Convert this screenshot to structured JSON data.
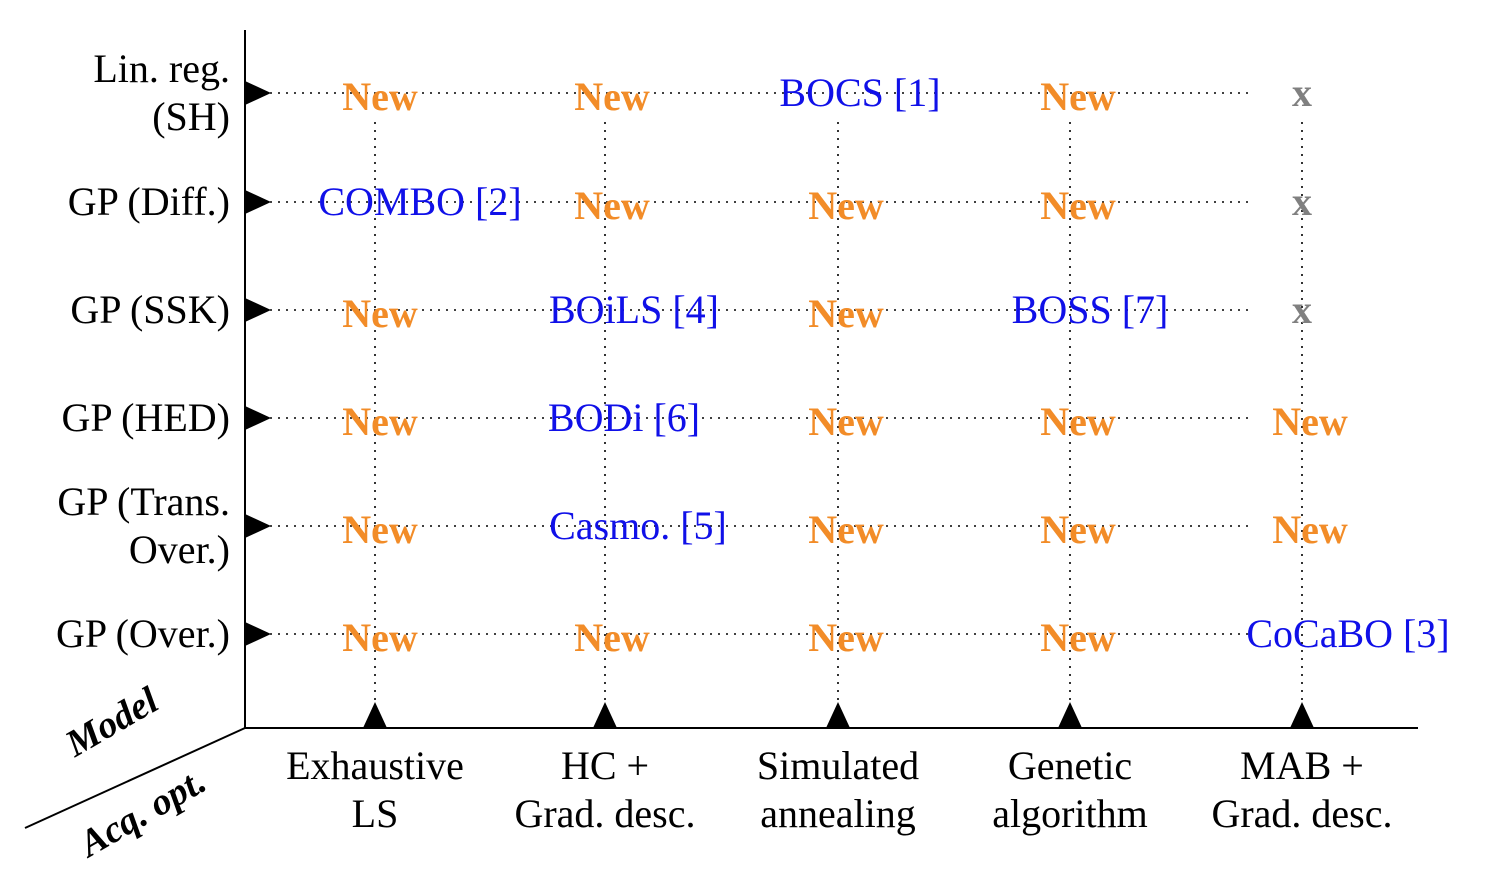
{
  "axes": {
    "row_axis_label": "Model",
    "col_axis_label": "Acq. opt."
  },
  "rows": [
    {
      "label_lines": [
        "Lin.  reg.",
        "(SH)"
      ]
    },
    {
      "label_lines": [
        "GP (Diff.)"
      ]
    },
    {
      "label_lines": [
        "GP (SSK)"
      ]
    },
    {
      "label_lines": [
        "GP (HED)"
      ]
    },
    {
      "label_lines": [
        "GP (Trans.",
        "Over.)"
      ]
    },
    {
      "label_lines": [
        "GP (Over.)"
      ]
    }
  ],
  "columns": [
    {
      "label_lines": [
        "Exhaustive",
        "LS"
      ]
    },
    {
      "label_lines": [
        "HC +",
        "Grad.  desc."
      ]
    },
    {
      "label_lines": [
        "Simulated",
        "annealing"
      ]
    },
    {
      "label_lines": [
        "Genetic",
        "algorithm"
      ]
    },
    {
      "label_lines": [
        "MAB +",
        "Grad.  desc."
      ]
    }
  ],
  "cells": [
    [
      {
        "text": "New",
        "kind": "new"
      },
      {
        "text": "New",
        "kind": "new"
      },
      {
        "text": "BOCS [1]",
        "kind": "ref"
      },
      {
        "text": "New",
        "kind": "new"
      },
      {
        "text": "x",
        "kind": "none"
      }
    ],
    [
      {
        "text": "COMBO [2]",
        "kind": "ref"
      },
      {
        "text": "New",
        "kind": "new"
      },
      {
        "text": "New",
        "kind": "new"
      },
      {
        "text": "New",
        "kind": "new"
      },
      {
        "text": "x",
        "kind": "none"
      }
    ],
    [
      {
        "text": "New",
        "kind": "new"
      },
      {
        "text": "BOiLS [4]",
        "kind": "ref"
      },
      {
        "text": "New",
        "kind": "new"
      },
      {
        "text": "BOSS [7]",
        "kind": "ref"
      },
      {
        "text": "x",
        "kind": "none"
      }
    ],
    [
      {
        "text": "New",
        "kind": "new"
      },
      {
        "text": "BODi [6]",
        "kind": "ref"
      },
      {
        "text": "New",
        "kind": "new"
      },
      {
        "text": "New",
        "kind": "new"
      },
      {
        "text": "New",
        "kind": "new"
      }
    ],
    [
      {
        "text": "New",
        "kind": "new"
      },
      {
        "text": "Casmo. [5]",
        "kind": "ref"
      },
      {
        "text": "New",
        "kind": "new"
      },
      {
        "text": "New",
        "kind": "new"
      },
      {
        "text": "New",
        "kind": "new"
      }
    ],
    [
      {
        "text": "New",
        "kind": "new"
      },
      {
        "text": "New",
        "kind": "new"
      },
      {
        "text": "New",
        "kind": "new"
      },
      {
        "text": "New",
        "kind": "new"
      },
      {
        "text": "CoCaBO [3]",
        "kind": "ref"
      }
    ]
  ],
  "colors": {
    "new": "#f28c28",
    "ref": "#1010e8",
    "none": "#808080"
  }
}
